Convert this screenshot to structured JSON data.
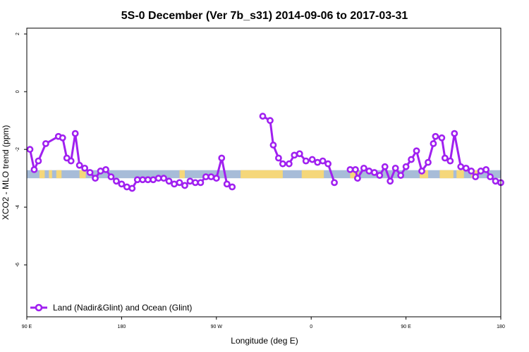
{
  "chart_data": {
    "type": "line",
    "title": "5S-0 December (Ver 7b_s31)   2014-09-06 to 2017-03-31",
    "xlabel": "Longitude (deg E)",
    "ylabel": "XCO2 - MLO trend (ppm)",
    "x_ticks": [
      {
        "value": 90,
        "label": "90 E"
      },
      {
        "value": 180,
        "label": "180"
      },
      {
        "value": 270,
        "label": "90 W"
      },
      {
        "value": 360,
        "label": "0"
      },
      {
        "value": 450,
        "label": "90 E"
      },
      {
        "value": 540,
        "label": "180"
      }
    ],
    "y_ticks": [
      {
        "value": 2,
        "label": "2"
      },
      {
        "value": 0,
        "label": "0"
      },
      {
        "value": -2,
        "label": "-2"
      },
      {
        "value": -4,
        "label": "-4"
      },
      {
        "value": -6,
        "label": "-6"
      }
    ],
    "xlim": [
      90,
      540
    ],
    "ylim": [
      -7.8,
      2.2
    ],
    "grid": false,
    "legend_position": "bottom-left",
    "surface_band": {
      "y_top": -2.72,
      "y_bottom": -3.0,
      "ocean_color": "#a7bcd8",
      "land_color": "#f5d77a",
      "land_segments": [
        [
          102,
          107
        ],
        [
          111,
          114
        ],
        [
          118,
          123
        ],
        [
          140,
          146
        ],
        [
          235,
          240
        ],
        [
          293,
          333
        ],
        [
          351,
          372
        ],
        [
          397,
          405
        ],
        [
          463,
          471
        ],
        [
          482,
          495
        ],
        [
          498,
          505
        ],
        [
          512,
          519
        ]
      ]
    },
    "series": [
      {
        "name": "Land (Nadir&Glint) and Ocean (Glint)",
        "color": "#a020f0",
        "segments": [
          {
            "x": [
              93,
              97,
              101,
              108,
              120,
              124,
              128,
              132,
              136,
              140,
              145,
              150,
              155,
              160,
              165,
              170,
              175,
              180,
              185,
              190,
              195,
              200,
              205,
              210,
              215,
              220,
              225,
              230,
              235,
              240,
              245,
              250,
              255,
              260,
              265,
              270,
              275,
              280,
              285
            ],
            "y": [
              -2.0,
              -2.7,
              -2.4,
              -1.8,
              -1.55,
              -1.6,
              -2.3,
              -2.4,
              -1.45,
              -2.55,
              -2.65,
              -2.8,
              -3.0,
              -2.75,
              -2.7,
              -2.95,
              -3.1,
              -3.2,
              -3.3,
              -3.35,
              -3.05,
              -3.05,
              -3.05,
              -3.05,
              -3.0,
              -3.0,
              -3.1,
              -3.2,
              -3.15,
              -3.25,
              -3.1,
              -3.15,
              -3.15,
              -2.95,
              -2.95,
              -3.0,
              -2.3,
              -3.2,
              -3.3
            ]
          },
          {
            "x": [
              314,
              321,
              324,
              329,
              333,
              339,
              344,
              349,
              355,
              361,
              366,
              371,
              376,
              382
            ],
            "y": [
              -0.85,
              -1.0,
              -1.85,
              -2.3,
              -2.5,
              -2.5,
              -2.2,
              -2.15,
              -2.4,
              -2.35,
              -2.45,
              -2.4,
              -2.5,
              -3.15
            ]
          },
          {
            "x": [
              397,
              402,
              404,
              410,
              415,
              420,
              425,
              430,
              435,
              440,
              445,
              450,
              455,
              460,
              465,
              471,
              476,
              478,
              484,
              487,
              492,
              496,
              502,
              507,
              512,
              516,
              521,
              526,
              530,
              535,
              540
            ],
            "y": [
              -2.7,
              -2.7,
              -3.0,
              -2.65,
              -2.75,
              -2.8,
              -2.9,
              -2.6,
              -3.1,
              -2.65,
              -2.9,
              -2.6,
              -2.35,
              -2.05,
              -2.75,
              -2.45,
              -1.8,
              -1.55,
              -1.6,
              -2.3,
              -2.4,
              -1.45,
              -2.6,
              -2.65,
              -2.75,
              -2.95,
              -2.75,
              -2.7,
              -2.95,
              -3.1,
              -3.15
            ]
          }
        ]
      }
    ]
  }
}
